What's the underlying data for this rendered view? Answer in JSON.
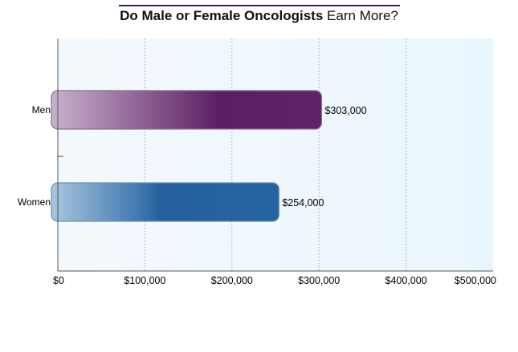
{
  "title": {
    "bold_part": "Do Male or Female Oncologists",
    "rest_part": "Earn More?"
  },
  "chart_data": {
    "type": "bar",
    "orientation": "horizontal",
    "title": "Do Male or Female Oncologists Earn More?",
    "categories": [
      "Men",
      "Women"
    ],
    "values": [
      303000,
      254000
    ],
    "value_labels": [
      "$303,000",
      "$254,000"
    ],
    "xlim": [
      0,
      500000
    ],
    "xticks": [
      0,
      100000,
      200000,
      300000,
      400000,
      500000
    ],
    "xtick_labels": [
      "$0",
      "$100,000",
      "$200,000",
      "$300,000",
      "$400,000",
      "$500,000"
    ],
    "grid": "vertical-dotted",
    "legend": "none",
    "colors": {
      "Men": "#5a1f63",
      "Women": "#2563a0"
    }
  }
}
